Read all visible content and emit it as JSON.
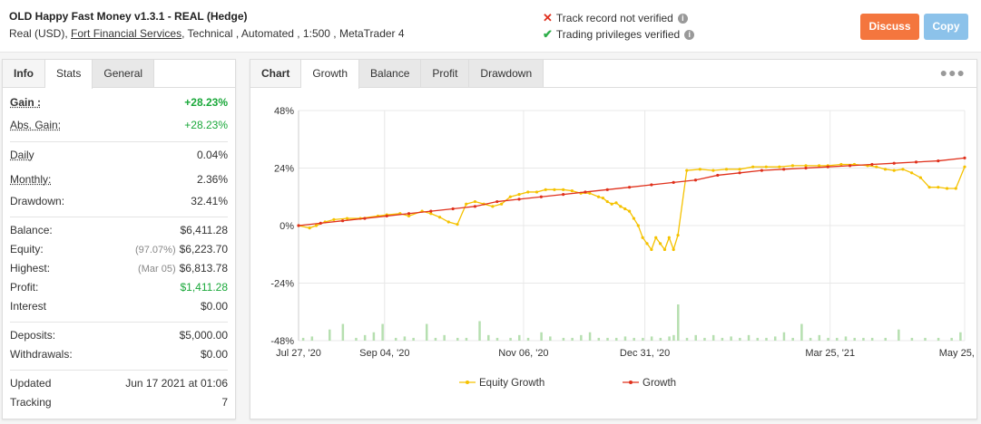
{
  "header": {
    "title": "OLD Happy Fast Money v1.3.1 - REAL (Hedge)",
    "sub_prefix": "Real (USD),",
    "broker": "Fort Financial Services",
    "sub_suffix": ", Technical , Automated , 1:500 , MetaTrader 4",
    "verify_1": "Track record not verified",
    "verify_2": "Trading privileges verified",
    "discuss": "Discuss",
    "copy": "Copy"
  },
  "left_tabs": [
    "Info",
    "Stats",
    "General"
  ],
  "stats": {
    "gain": {
      "label": "Gain :",
      "value": "+28.23%"
    },
    "abs_gain": {
      "label": "Abs. Gain:",
      "value": "+28.23%"
    },
    "daily": {
      "label": "Daily",
      "value": "0.04%"
    },
    "monthly": {
      "label": "Monthly:",
      "value": "2.36%"
    },
    "drawdown": {
      "label": "Drawdown:",
      "value": "32.41%"
    },
    "balance": {
      "label": "Balance:",
      "value": "$6,411.28"
    },
    "equity": {
      "label": "Equity:",
      "sub": "(97.07%)",
      "value": "$6,223.70"
    },
    "highest": {
      "label": "Highest:",
      "sub": "(Mar 05)",
      "value": "$6,813.78"
    },
    "profit": {
      "label": "Profit:",
      "value": "$1,411.28"
    },
    "interest": {
      "label": "Interest",
      "value": "$0.00"
    },
    "deposits": {
      "label": "Deposits:",
      "value": "$5,000.00"
    },
    "withdrawals": {
      "label": "Withdrawals:",
      "value": "$0.00"
    },
    "updated": {
      "label": "Updated",
      "value": "Jun 17 2021 at 01:06"
    },
    "tracking": {
      "label": "Tracking",
      "value": "7"
    }
  },
  "chart_tabs": [
    "Chart",
    "Growth",
    "Balance",
    "Profit",
    "Drawdown"
  ],
  "colors": {
    "growth": "#e0311c",
    "equity": "#f5c200",
    "bars": "#b6dfb0",
    "grid": "#e8e8e8"
  },
  "chart_data": {
    "type": "line",
    "ylim": [
      -48,
      48
    ],
    "yticks": [
      "48%",
      "24%",
      "0%",
      "-24%",
      "-48%"
    ],
    "x_tick_labels": [
      "Jul 27, '20",
      "Sep 04, '20",
      "Nov 06, '20",
      "Dec 31, '20",
      "Mar 25, '21",
      "May 25, '21"
    ],
    "x_range_days": [
      0,
      302
    ],
    "x_tick_days": [
      0,
      39,
      102,
      157,
      241,
      302
    ],
    "legend_placement": "bottom-center",
    "series": [
      {
        "name": "Equity Growth",
        "days": [
          0,
          5,
          8,
          12,
          16,
          22,
          28,
          36,
          40,
          46,
          50,
          56,
          60,
          64,
          68,
          72,
          76,
          80,
          84,
          88,
          92,
          96,
          100,
          104,
          108,
          112,
          116,
          120,
          124,
          128,
          132,
          136,
          138,
          140,
          142,
          144,
          146,
          148,
          150,
          152,
          154,
          156,
          158,
          160,
          162,
          164,
          166,
          168,
          170,
          172,
          176,
          182,
          188,
          194,
          200,
          206,
          212,
          218,
          224,
          230,
          236,
          240,
          246,
          252,
          258,
          262,
          266,
          270,
          274,
          278,
          282,
          286,
          290,
          294,
          298,
          302
        ],
        "values": [
          0,
          -1,
          0,
          1.5,
          2.5,
          3,
          3,
          4,
          4.5,
          5,
          4,
          6,
          5,
          3.5,
          1.5,
          0.5,
          9,
          10,
          9,
          8,
          9,
          12,
          13,
          14,
          14,
          15,
          15,
          15,
          14.5,
          13.5,
          13.5,
          12,
          11.5,
          10,
          9,
          9.5,
          8,
          7,
          6,
          3,
          0,
          -5,
          -7.5,
          -10,
          -5,
          -7.5,
          -10,
          -5,
          -10,
          -4,
          23,
          23.5,
          23,
          23.5,
          23.5,
          24.5,
          24.5,
          24.5,
          25,
          25,
          25,
          25,
          25.5,
          25.5,
          25,
          24.5,
          23.5,
          23,
          23.5,
          22,
          20,
          16,
          16,
          15.5,
          15.5,
          24.5
        ]
      },
      {
        "name": "Growth",
        "days": [
          0,
          10,
          20,
          30,
          40,
          50,
          60,
          70,
          80,
          90,
          100,
          110,
          120,
          130,
          140,
          150,
          160,
          170,
          180,
          190,
          200,
          210,
          220,
          230,
          240,
          250,
          260,
          270,
          280,
          290,
          302
        ],
        "values": [
          0,
          1,
          2,
          3,
          4,
          5,
          6,
          7,
          8,
          10,
          11,
          12,
          13,
          14,
          15,
          16,
          17,
          18,
          19,
          21,
          22,
          23,
          23.5,
          24,
          24.5,
          25,
          25.5,
          26,
          26.5,
          27,
          28.2
        ]
      }
    ],
    "bars": {
      "name": "Daily profit",
      "days": [
        2,
        6,
        14,
        20,
        26,
        30,
        34,
        38,
        44,
        48,
        52,
        58,
        62,
        66,
        72,
        76,
        82,
        86,
        90,
        96,
        100,
        104,
        110,
        114,
        120,
        124,
        128,
        132,
        136,
        140,
        144,
        148,
        152,
        156,
        160,
        164,
        168,
        170,
        172,
        176,
        180,
        184,
        188,
        192,
        196,
        200,
        204,
        208,
        212,
        216,
        220,
        224,
        228,
        232,
        236,
        240,
        244,
        248,
        252,
        256,
        260,
        266,
        272,
        278,
        284,
        290,
        296,
        300
      ],
      "values": [
        1,
        1.5,
        4,
        6,
        1,
        2,
        3,
        6,
        1,
        1.5,
        1,
        6,
        1,
        2,
        1,
        1,
        7,
        2,
        1,
        1,
        2,
        1,
        3,
        1.5,
        1,
        1,
        2,
        3,
        1,
        1,
        1,
        1.5,
        1,
        1,
        1.5,
        1,
        1.5,
        2,
        13,
        1,
        2,
        1,
        2,
        1,
        1.5,
        1,
        2,
        1,
        1,
        1.5,
        3,
        1,
        6,
        1,
        2,
        1,
        1,
        1.5,
        1,
        1,
        1,
        1,
        4,
        1,
        1,
        1,
        1,
        3
      ]
    }
  }
}
